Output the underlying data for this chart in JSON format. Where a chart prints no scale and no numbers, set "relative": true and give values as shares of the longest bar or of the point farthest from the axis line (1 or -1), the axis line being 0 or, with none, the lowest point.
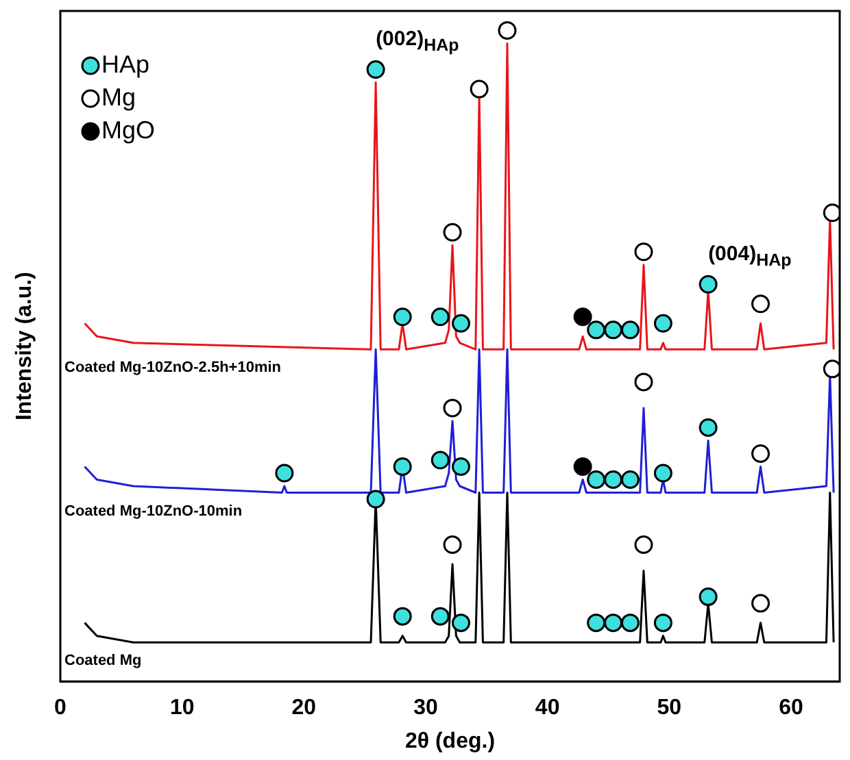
{
  "chart_data": {
    "type": "line",
    "relative": true,
    "xlabel": "2θ (deg.)",
    "ylabel": "Intensity (a.u.)",
    "xlim": [
      0,
      64
    ],
    "xticks": [
      0,
      10,
      20,
      30,
      40,
      50,
      60
    ],
    "grid": false,
    "legend": "top left",
    "marker": "none",
    "line_style": "solid",
    "annotations": [
      {
        "text": "(002)$_{HAp}$",
        "x": 25.9,
        "y": 0.94
      },
      {
        "text": "(004)$_{HAp}$",
        "x": 53.2,
        "y": 0.61
      }
    ],
    "series": [
      {
        "name": "Coated Mg-10ZnO-2.5h+10min",
        "color": "#e8141c",
        "x": [
          2,
          3,
          6,
          25.5,
          25.9,
          26.3,
          27.8,
          28.1,
          28.4,
          31.6,
          31.9,
          32.2,
          32.5,
          32.8,
          34.1,
          34.4,
          34.7,
          36.4,
          36.7,
          37,
          42.6,
          42.9,
          43.2,
          47.6,
          47.9,
          48.2,
          49.3,
          49.5,
          49.7,
          52.9,
          53.2,
          53.5,
          57.2,
          57.5,
          57.8,
          62.9,
          63.2,
          63.5
        ],
        "values": [
          0.55,
          0.53,
          0.52,
          0.51,
          0.92,
          0.51,
          0.51,
          0.55,
          0.51,
          0.52,
          0.54,
          0.67,
          0.53,
          0.52,
          0.51,
          0.9,
          0.51,
          0.51,
          0.98,
          0.51,
          0.51,
          0.53,
          0.51,
          0.51,
          0.64,
          0.51,
          0.51,
          0.52,
          0.51,
          0.51,
          0.6,
          0.51,
          0.51,
          0.55,
          0.51,
          0.52,
          0.71,
          0.51
        ]
      },
      {
        "name": "Coated Mg-10ZnO-10min",
        "color": "#1f1fd6",
        "x": [
          2,
          3,
          6,
          18.2,
          18.4,
          18.6,
          25.5,
          25.9,
          26.3,
          27.8,
          28.1,
          28.4,
          31.6,
          31.9,
          32.2,
          32.5,
          32.8,
          34.1,
          34.4,
          34.7,
          36.4,
          36.7,
          37,
          42.6,
          42.9,
          43.2,
          47.6,
          47.9,
          48.2,
          49.3,
          49.5,
          49.7,
          52.9,
          53.2,
          53.5,
          57.2,
          57.5,
          57.8,
          62.9,
          63.2,
          63.5
        ],
        "values": [
          0.33,
          0.31,
          0.3,
          0.29,
          0.3,
          0.29,
          0.29,
          0.51,
          0.29,
          0.29,
          0.33,
          0.29,
          0.3,
          0.32,
          0.4,
          0.31,
          0.3,
          0.29,
          0.51,
          0.29,
          0.29,
          0.51,
          0.29,
          0.29,
          0.31,
          0.29,
          0.29,
          0.42,
          0.29,
          0.29,
          0.31,
          0.29,
          0.29,
          0.37,
          0.29,
          0.29,
          0.33,
          0.29,
          0.3,
          0.47,
          0.29
        ]
      },
      {
        "name": "Coated Mg",
        "color": "#000000",
        "x": [
          2,
          3,
          6,
          25.5,
          25.9,
          26.3,
          27.8,
          28.1,
          28.4,
          31.6,
          31.9,
          32.2,
          32.5,
          32.8,
          34.1,
          34.4,
          34.7,
          36.4,
          36.7,
          37,
          47.6,
          47.9,
          48.2,
          49.3,
          49.5,
          49.7,
          52.9,
          53.2,
          53.5,
          57.2,
          57.5,
          57.8,
          62.9,
          63.2,
          63.5
        ],
        "values": [
          0.09,
          0.07,
          0.06,
          0.06,
          0.28,
          0.06,
          0.06,
          0.07,
          0.06,
          0.06,
          0.07,
          0.18,
          0.07,
          0.06,
          0.06,
          0.29,
          0.06,
          0.06,
          0.29,
          0.06,
          0.06,
          0.17,
          0.06,
          0.06,
          0.07,
          0.06,
          0.06,
          0.12,
          0.06,
          0.06,
          0.09,
          0.06,
          0.06,
          0.29,
          0.06
        ]
      },
      {
        "name": "HAp",
        "type": "scatter",
        "marker": "circle",
        "color": "#3ee0de",
        "x": [
          25.9,
          28.1,
          31.2,
          32.9,
          44,
          45.4,
          46.8,
          49.5,
          53.2,
          18.4,
          25.9,
          28.1,
          31.2,
          32.9,
          44,
          45.4,
          46.8,
          49.5,
          53.2,
          28.1,
          31.2,
          32.9,
          44,
          45.4,
          46.8,
          49.5,
          53.2
        ],
        "values": [
          0.94,
          0.56,
          0.56,
          0.55,
          0.54,
          0.54,
          0.54,
          0.55,
          0.61,
          0.32,
          0.28,
          0.33,
          0.34,
          0.33,
          0.31,
          0.31,
          0.31,
          0.32,
          0.39,
          0.1,
          0.1,
          0.09,
          0.09,
          0.09,
          0.09,
          0.09,
          0.13
        ]
      },
      {
        "name": "Mg",
        "type": "scatter",
        "marker": "circle",
        "color": "#ffffff",
        "x": [
          32.2,
          34.4,
          36.7,
          47.9,
          57.5,
          63.4,
          32.2,
          47.9,
          57.5,
          63.4,
          32.2,
          47.9,
          57.5
        ],
        "values": [
          0.69,
          0.91,
          1.0,
          0.66,
          0.58,
          0.72,
          0.42,
          0.46,
          0.35,
          0.48,
          0.21,
          0.21,
          0.12
        ]
      },
      {
        "name": "MgO",
        "type": "scatter",
        "marker": "circle",
        "color": "#000000",
        "x": [
          42.9,
          42.9
        ],
        "values": [
          0.56,
          0.33
        ]
      }
    ]
  }
}
